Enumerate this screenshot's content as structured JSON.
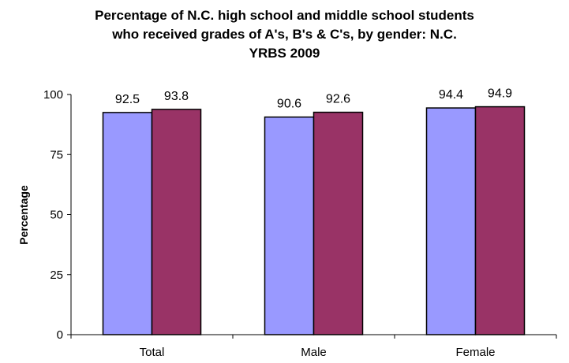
{
  "chart_data": {
    "type": "bar",
    "title_lines": [
      "Percentage of N.C. high school and middle school students",
      "who received grades of A's, B's & C's, by gender: N.C.",
      "YRBS 2009"
    ],
    "xlabel": "",
    "ylabel": "Percentage",
    "ylim": [
      0,
      100
    ],
    "yticks": [
      0,
      25,
      50,
      75,
      100
    ],
    "categories": [
      "Total",
      "Male",
      "Female"
    ],
    "series": [
      {
        "values": [
          92.5,
          90.6,
          94.4
        ],
        "color": "#9999FF"
      },
      {
        "values": [
          93.8,
          92.6,
          94.9
        ],
        "color": "#993366"
      }
    ],
    "grid": false,
    "legend": "none"
  }
}
